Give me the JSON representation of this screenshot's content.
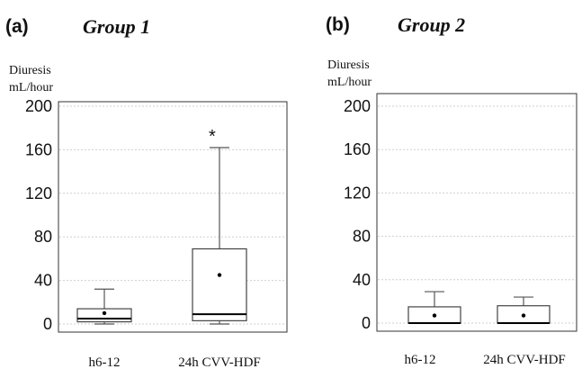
{
  "chart_data": [
    {
      "type": "box",
      "panel": "(a)",
      "title": "Group 1",
      "ylabel_line1": "Diuresis",
      "ylabel_line2": "mL/hour",
      "xlabel": "",
      "ylim": [
        0,
        200
      ],
      "yticks": [
        "0",
        "40",
        "80",
        "120",
        "160",
        "200"
      ],
      "grid": true,
      "categories": [
        "h6-12",
        "24h CVV-HDF"
      ],
      "boxes": [
        {
          "min": 0,
          "q1": 2,
          "median": 5,
          "q3": 14,
          "max": 32,
          "mean": 10,
          "annotation": ""
        },
        {
          "min": 0,
          "q1": 3,
          "median": 9,
          "q3": 69,
          "max": 162,
          "mean": 45,
          "annotation": "*"
        }
      ]
    },
    {
      "type": "box",
      "panel": "(b)",
      "title": "Group 2",
      "ylabel_line1": "Diuresis",
      "ylabel_line2": "mL/hour",
      "xlabel": "",
      "ylim": [
        0,
        200
      ],
      "yticks": [
        "0",
        "40",
        "80",
        "120",
        "160",
        "200"
      ],
      "grid": true,
      "categories": [
        "h6-12",
        "24h CVV-HDF"
      ],
      "boxes": [
        {
          "min": 0,
          "q1": 0,
          "median": 0,
          "q3": 15,
          "max": 29,
          "mean": 7,
          "annotation": ""
        },
        {
          "min": 0,
          "q1": 0,
          "median": 0,
          "q3": 16,
          "max": 24,
          "mean": 7,
          "annotation": ""
        }
      ]
    }
  ]
}
